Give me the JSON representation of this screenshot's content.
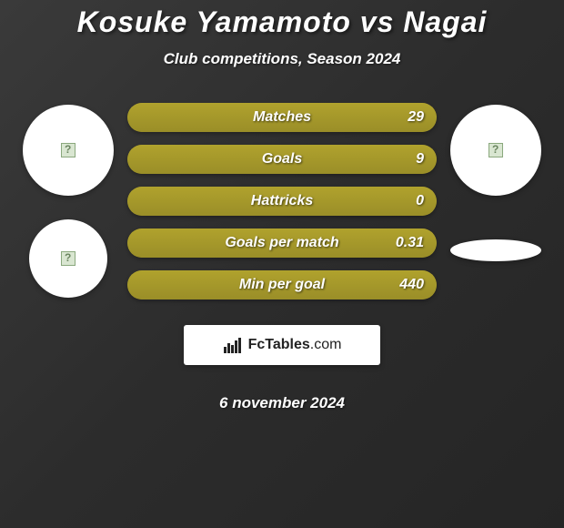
{
  "title": {
    "text": "Kosuke Yamamoto vs Nagai",
    "fontsize": 32,
    "color": "#ffffff"
  },
  "subtitle": {
    "text": "Club competitions, Season 2024",
    "fontsize": 17,
    "color": "#ffffff"
  },
  "date": {
    "text": "6 november 2024",
    "fontsize": 17,
    "color": "#ffffff"
  },
  "background": {
    "gradient_from": "#3a3a3a",
    "gradient_to": "#252525"
  },
  "logo": {
    "text_bold": "FcTables",
    "text_light": ".com",
    "fontsize": 16
  },
  "stat_colors": {
    "fill": "#b0a22d",
    "track": "#9a8e28",
    "label_color": "#ffffff",
    "value_color": "#ffffff"
  },
  "stat_style": {
    "label_fontsize": 16,
    "value_fontsize": 16,
    "pill_height": 32,
    "pill_width": 340
  },
  "stats": [
    {
      "label": "Matches",
      "value": "29",
      "fill_pct": 100
    },
    {
      "label": "Goals",
      "value": "9",
      "fill_pct": 100
    },
    {
      "label": "Hattricks",
      "value": "0",
      "fill_pct": 100
    },
    {
      "label": "Goals per match",
      "value": "0.31",
      "fill_pct": 100
    },
    {
      "label": "Min per goal",
      "value": "440",
      "fill_pct": 100
    }
  ],
  "left_side": {
    "circle1": {
      "diameter": 100,
      "bg": "#ffffff",
      "has_broken_img": true
    },
    "circle2": {
      "diameter": 86,
      "bg": "#ffffff",
      "has_broken_img": true
    }
  },
  "right_side": {
    "circle1": {
      "diameter": 100,
      "bg": "#ffffff",
      "has_broken_img": true
    },
    "ellipse": {
      "width": 100,
      "height": 24,
      "bg": "#ffffff"
    }
  }
}
